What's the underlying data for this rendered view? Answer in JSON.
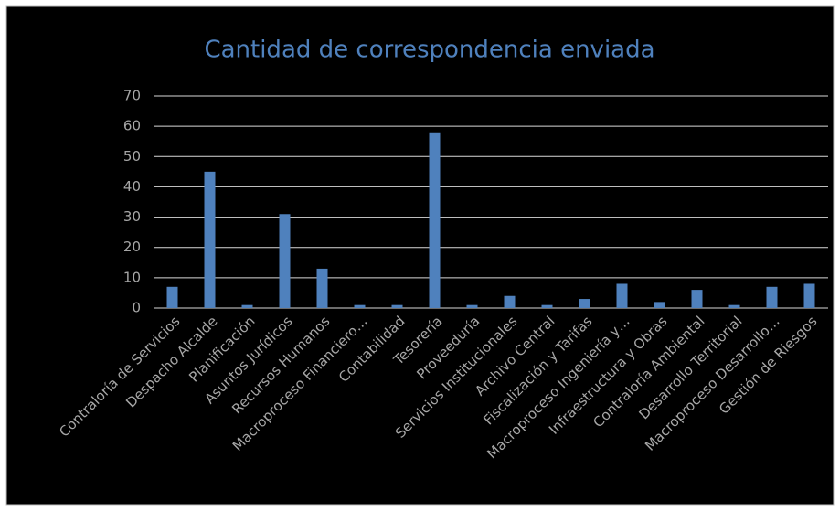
{
  "chart_data": {
    "type": "bar",
    "title": "Cantidad de correspondencia enviada",
    "categories": [
      "Contraloría de Servicios",
      "Despacho Alcalde",
      "Planificación",
      "Asuntos Jurídicos",
      "Recursos Humanos",
      "Macroproceso Financiero…",
      "Contabilidad",
      "Tesorería",
      "Proveeduría",
      "Servicios Institucionales",
      "Archivo Central",
      "Fiscalización y Tarifas",
      "Macroproceso Ingeniería y…",
      "Infraestructura y Obras",
      "Contraloría Ambiental",
      "Desarrollo Territorial",
      "Macroproceso Desarrollo…",
      "Gestión de Riesgos"
    ],
    "values": [
      7,
      45,
      1,
      31,
      13,
      1,
      1,
      58,
      1,
      4,
      1,
      3,
      8,
      2,
      6,
      1,
      7,
      8
    ],
    "color": "#4f81bd",
    "ylim": [
      0,
      70
    ],
    "yticks": [
      0,
      10,
      20,
      30,
      40,
      50,
      60,
      70
    ],
    "grid": true
  }
}
